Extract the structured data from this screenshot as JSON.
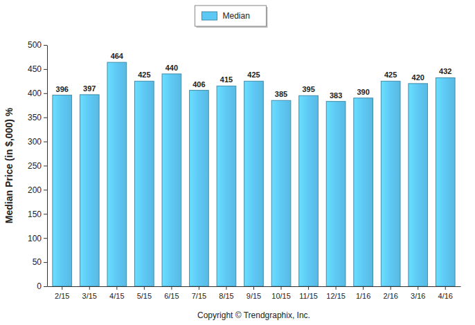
{
  "chart_data": {
    "type": "bar",
    "y_label": "Median Price (in $,000) %",
    "annotations": [
      "Copyright © Trendgraphix, Inc."
    ],
    "categories": [
      "2/15",
      "3/15",
      "4/15",
      "5/15",
      "6/15",
      "7/15",
      "8/15",
      "9/15",
      "10/15",
      "11/15",
      "12/15",
      "1/16",
      "2/16",
      "3/16",
      "4/16"
    ],
    "series": [
      {
        "name": "Median",
        "color": "#5ec8f4",
        "values": [
          396,
          397,
          464,
          425,
          440,
          406,
          415,
          425,
          385,
          395,
          383,
          390,
          425,
          420,
          432
        ]
      }
    ],
    "ylim": [
      0,
      500
    ],
    "yticks": [
      0,
      50,
      100,
      150,
      200,
      250,
      300,
      350,
      400,
      450,
      500
    ],
    "grid": false,
    "legend": "top",
    "data_labels": true
  }
}
